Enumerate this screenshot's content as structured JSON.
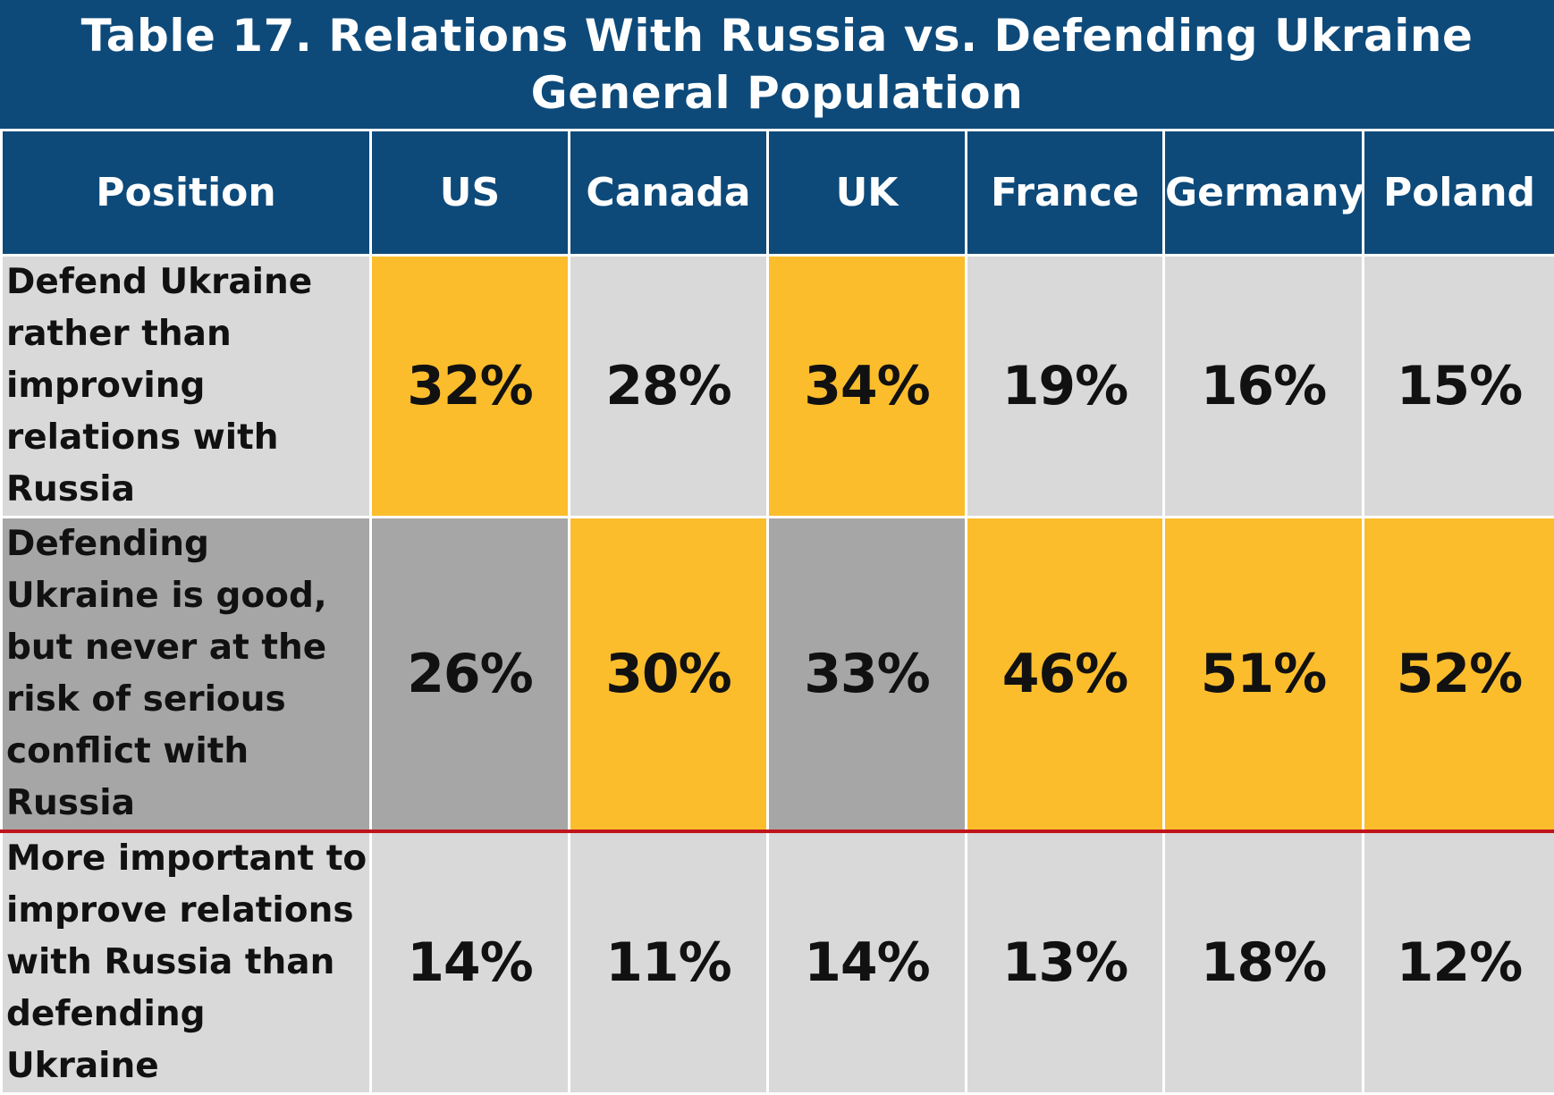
{
  "title": {
    "line1": "Table 17. Relations With Russia vs. Defending Ukraine",
    "line2": "General Population"
  },
  "colors": {
    "header_bg": "#0d4a7a",
    "highlight": "#fbbd2c",
    "row_light": "#d9d9d9",
    "row_dark": "#a6a6a6",
    "divider": "#c0141c"
  },
  "chart_data": {
    "type": "table",
    "title": "Table 17. Relations With Russia vs. Defending Ukraine",
    "subtitle": "General Population",
    "columns": [
      "Position",
      "US",
      "Canada",
      "UK",
      "France",
      "Germany",
      "Poland"
    ],
    "rows": [
      {
        "label": "Defend Ukraine rather than improving relations with Russia",
        "values": [
          "32%",
          "28%",
          "34%",
          "19%",
          "16%",
          "15%"
        ],
        "highlighted": [
          true,
          false,
          true,
          false,
          false,
          false
        ]
      },
      {
        "label": "Defending Ukraine is good, but never at the risk of serious conflict with Russia",
        "values": [
          "26%",
          "30%",
          "33%",
          "46%",
          "51%",
          "52%"
        ],
        "highlighted": [
          false,
          true,
          false,
          true,
          true,
          true
        ]
      },
      {
        "label": "More important to improve relations with Russia than defending Ukraine",
        "values": [
          "14%",
          "11%",
          "14%",
          "13%",
          "18%",
          "12%"
        ],
        "highlighted": [
          false,
          false,
          false,
          false,
          false,
          false
        ]
      }
    ]
  }
}
